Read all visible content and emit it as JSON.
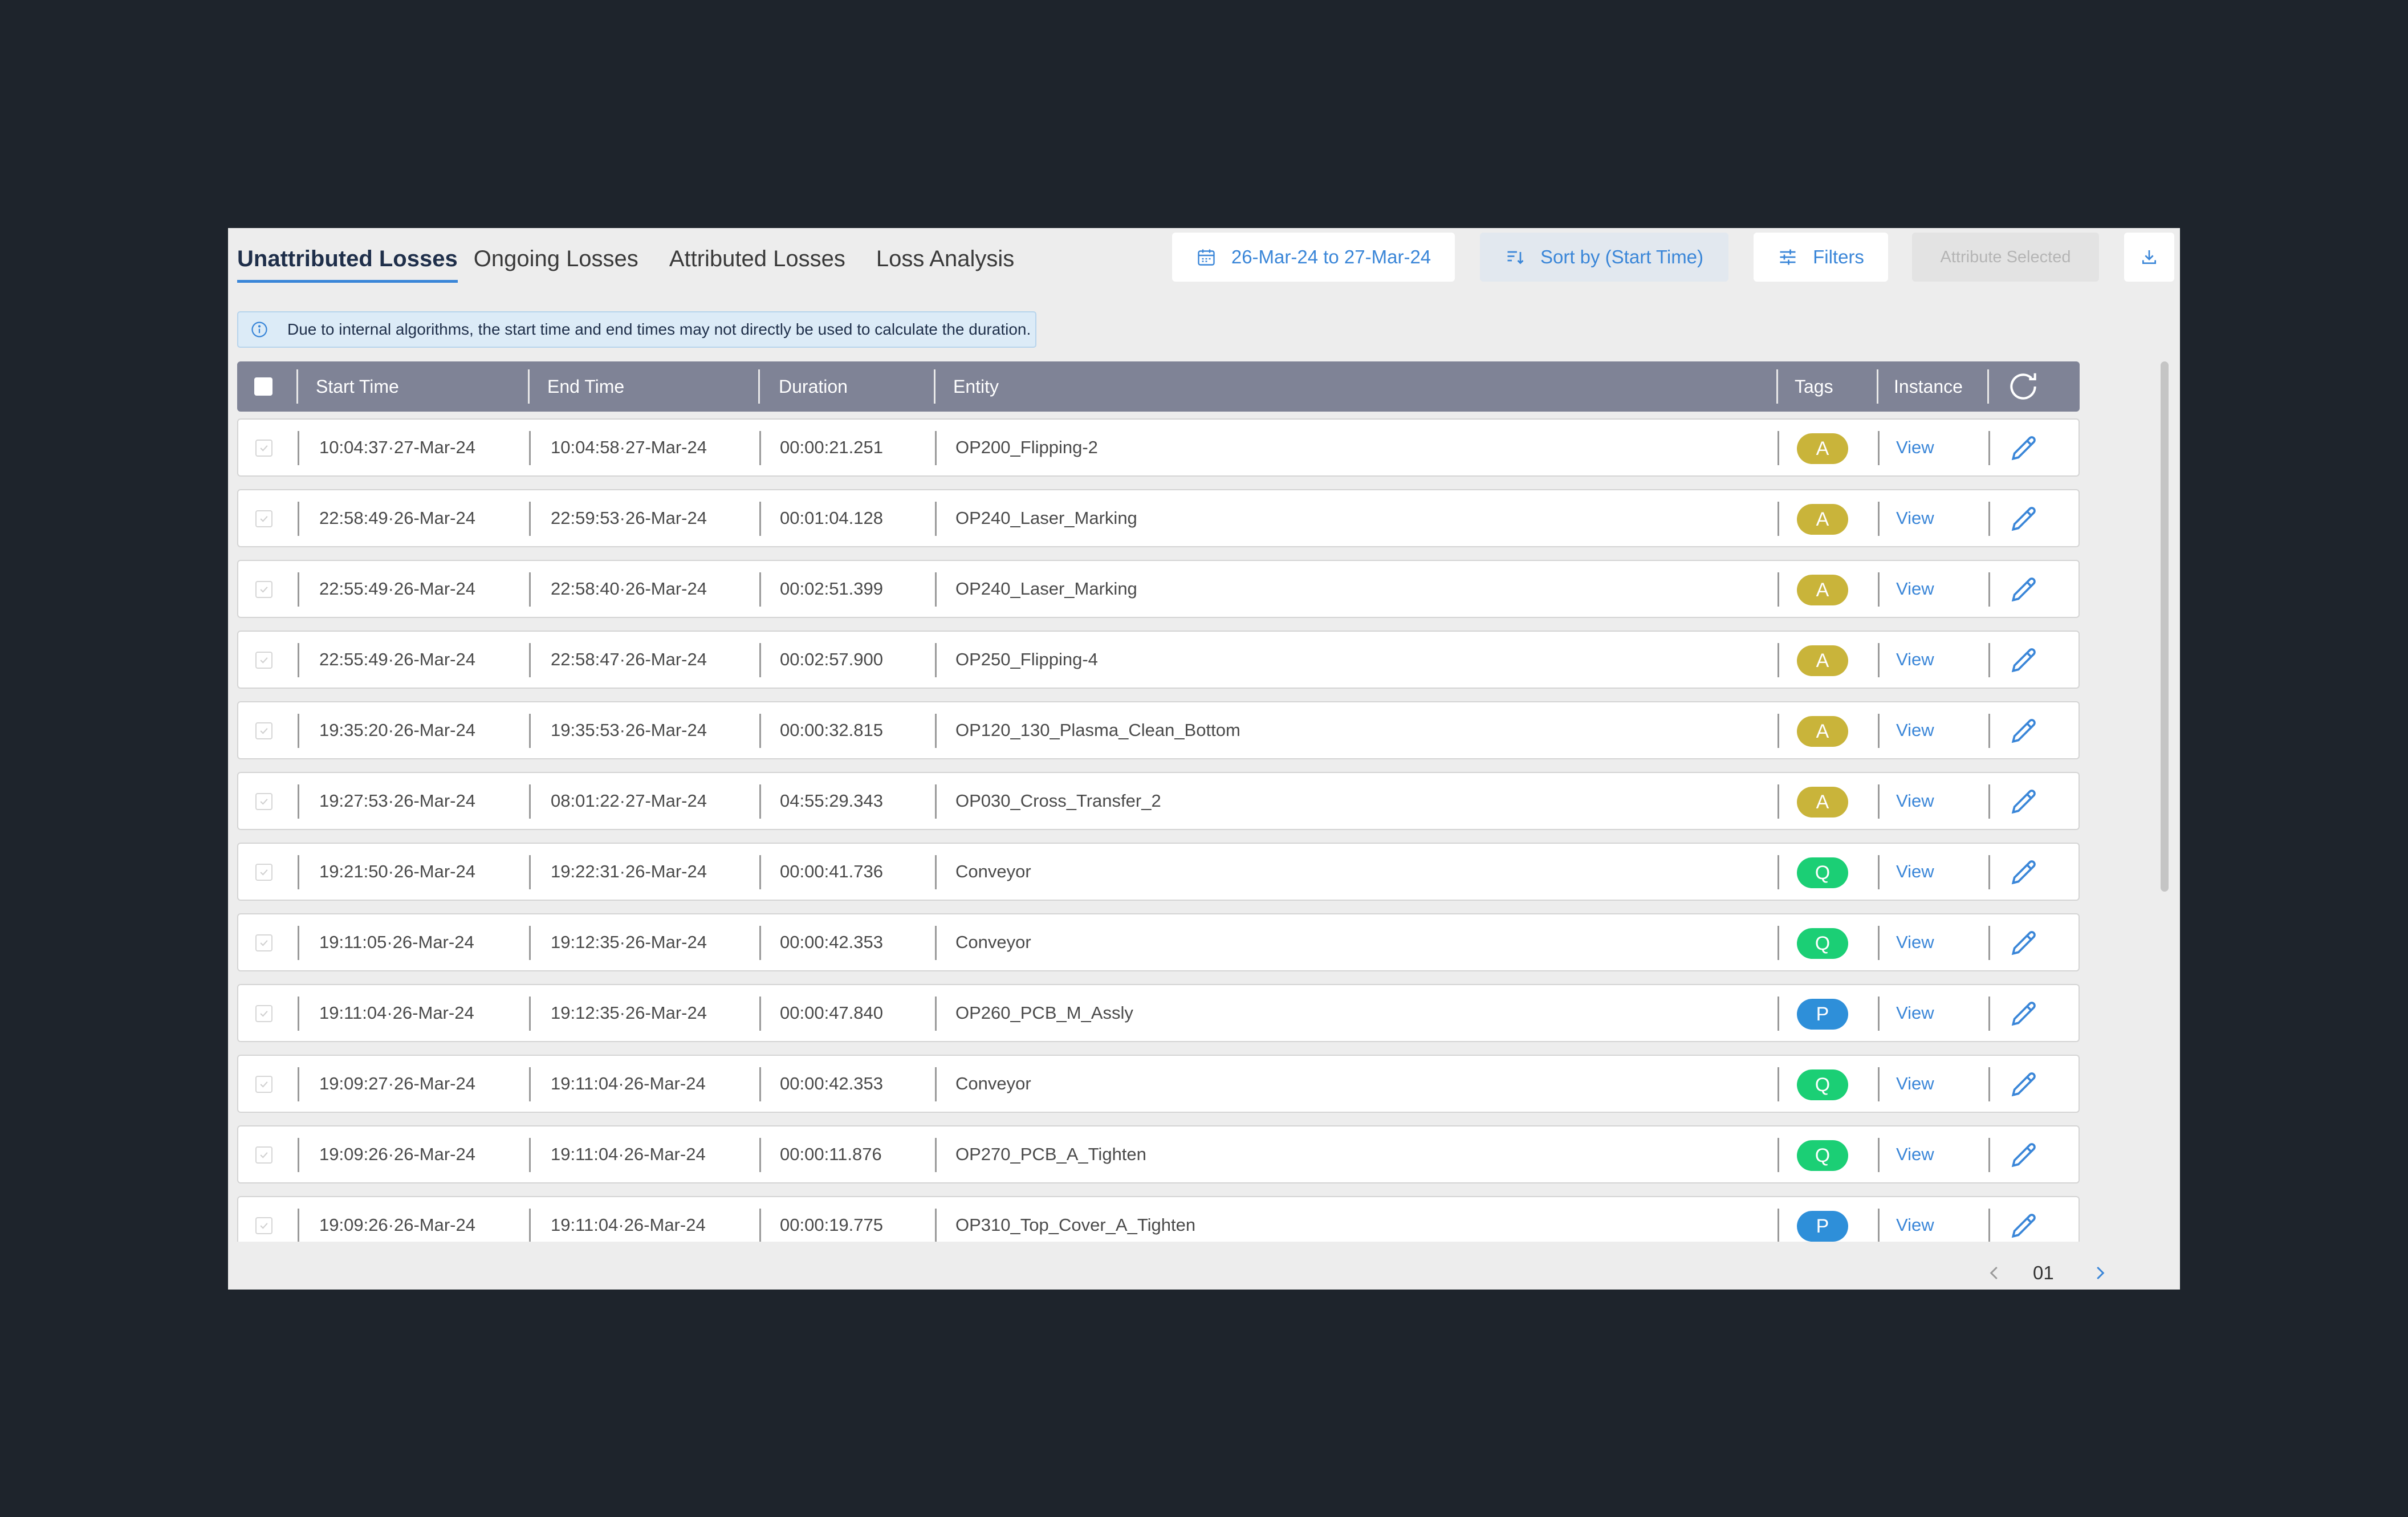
{
  "tabs": [
    "Unattributed Losses",
    "Ongoing Losses",
    "Attributed Losses",
    "Loss Analysis"
  ],
  "header": {
    "date_range": "26-Mar-24 to 27-Mar-24",
    "sort_label": "Sort by (Start Time)",
    "filters_label": "Filters",
    "attribute_label": "Attribute Selected"
  },
  "notice": "Due to internal algorithms, the start time and end times may not directly be used to calculate the duration.",
  "columns": {
    "start": "Start Time",
    "end": "End Time",
    "duration": "Duration",
    "entity": "Entity",
    "tags": "Tags",
    "instance": "Instance"
  },
  "rows": [
    {
      "start": "10:04:37·27-Mar-24",
      "end": "10:04:58·27-Mar-24",
      "duration": "00:00:21.251",
      "entity": "OP200_Flipping-2",
      "tag": "A",
      "view": "View"
    },
    {
      "start": "22:58:49·26-Mar-24",
      "end": "22:59:53·26-Mar-24",
      "duration": "00:01:04.128",
      "entity": "OP240_Laser_Marking",
      "tag": "A",
      "view": "View"
    },
    {
      "start": "22:55:49·26-Mar-24",
      "end": "22:58:40·26-Mar-24",
      "duration": "00:02:51.399",
      "entity": "OP240_Laser_Marking",
      "tag": "A",
      "view": "View"
    },
    {
      "start": "22:55:49·26-Mar-24",
      "end": "22:58:47·26-Mar-24",
      "duration": "00:02:57.900",
      "entity": "OP250_Flipping-4",
      "tag": "A",
      "view": "View"
    },
    {
      "start": "19:35:20·26-Mar-24",
      "end": "19:35:53·26-Mar-24",
      "duration": "00:00:32.815",
      "entity": "OP120_130_Plasma_Clean_Bottom",
      "tag": "A",
      "view": "View"
    },
    {
      "start": "19:27:53·26-Mar-24",
      "end": "08:01:22·27-Mar-24",
      "duration": "04:55:29.343",
      "entity": "OP030_Cross_Transfer_2",
      "tag": "A",
      "view": "View"
    },
    {
      "start": "19:21:50·26-Mar-24",
      "end": "19:22:31·26-Mar-24",
      "duration": "00:00:41.736",
      "entity": "Conveyor",
      "tag": "Q",
      "view": "View"
    },
    {
      "start": "19:11:05·26-Mar-24",
      "end": "19:12:35·26-Mar-24",
      "duration": "00:00:42.353",
      "entity": "Conveyor",
      "tag": "Q",
      "view": "View"
    },
    {
      "start": "19:11:04·26-Mar-24",
      "end": "19:12:35·26-Mar-24",
      "duration": "00:00:47.840",
      "entity": "OP260_PCB_M_Assly",
      "tag": "P",
      "view": "View"
    },
    {
      "start": "19:09:27·26-Mar-24",
      "end": "19:11:04·26-Mar-24",
      "duration": "00:00:42.353",
      "entity": "Conveyor",
      "tag": "Q",
      "view": "View"
    },
    {
      "start": "19:09:26·26-Mar-24",
      "end": "19:11:04·26-Mar-24",
      "duration": "00:00:11.876",
      "entity": "OP270_PCB_A_Tighten",
      "tag": "Q",
      "view": "View"
    },
    {
      "start": "19:09:26·26-Mar-24",
      "end": "19:11:04·26-Mar-24",
      "duration": "00:00:19.775",
      "entity": "OP310_Top_Cover_A_Tighten",
      "tag": "P",
      "view": "View"
    }
  ],
  "tag_colors": {
    "A": "#c9b43a",
    "Q": "#1bcf75",
    "P": "#2e8fd9"
  },
  "pagination": {
    "page": "01"
  },
  "icons": {
    "date": "calendar-icon",
    "sort": "sort-icon",
    "filters": "sliders-icon",
    "download": "download-icon",
    "info": "info-icon",
    "refresh": "refresh-icon",
    "edit": "pencil-icon",
    "prev": "chevron-left-icon",
    "next": "chevron-right-icon"
  }
}
